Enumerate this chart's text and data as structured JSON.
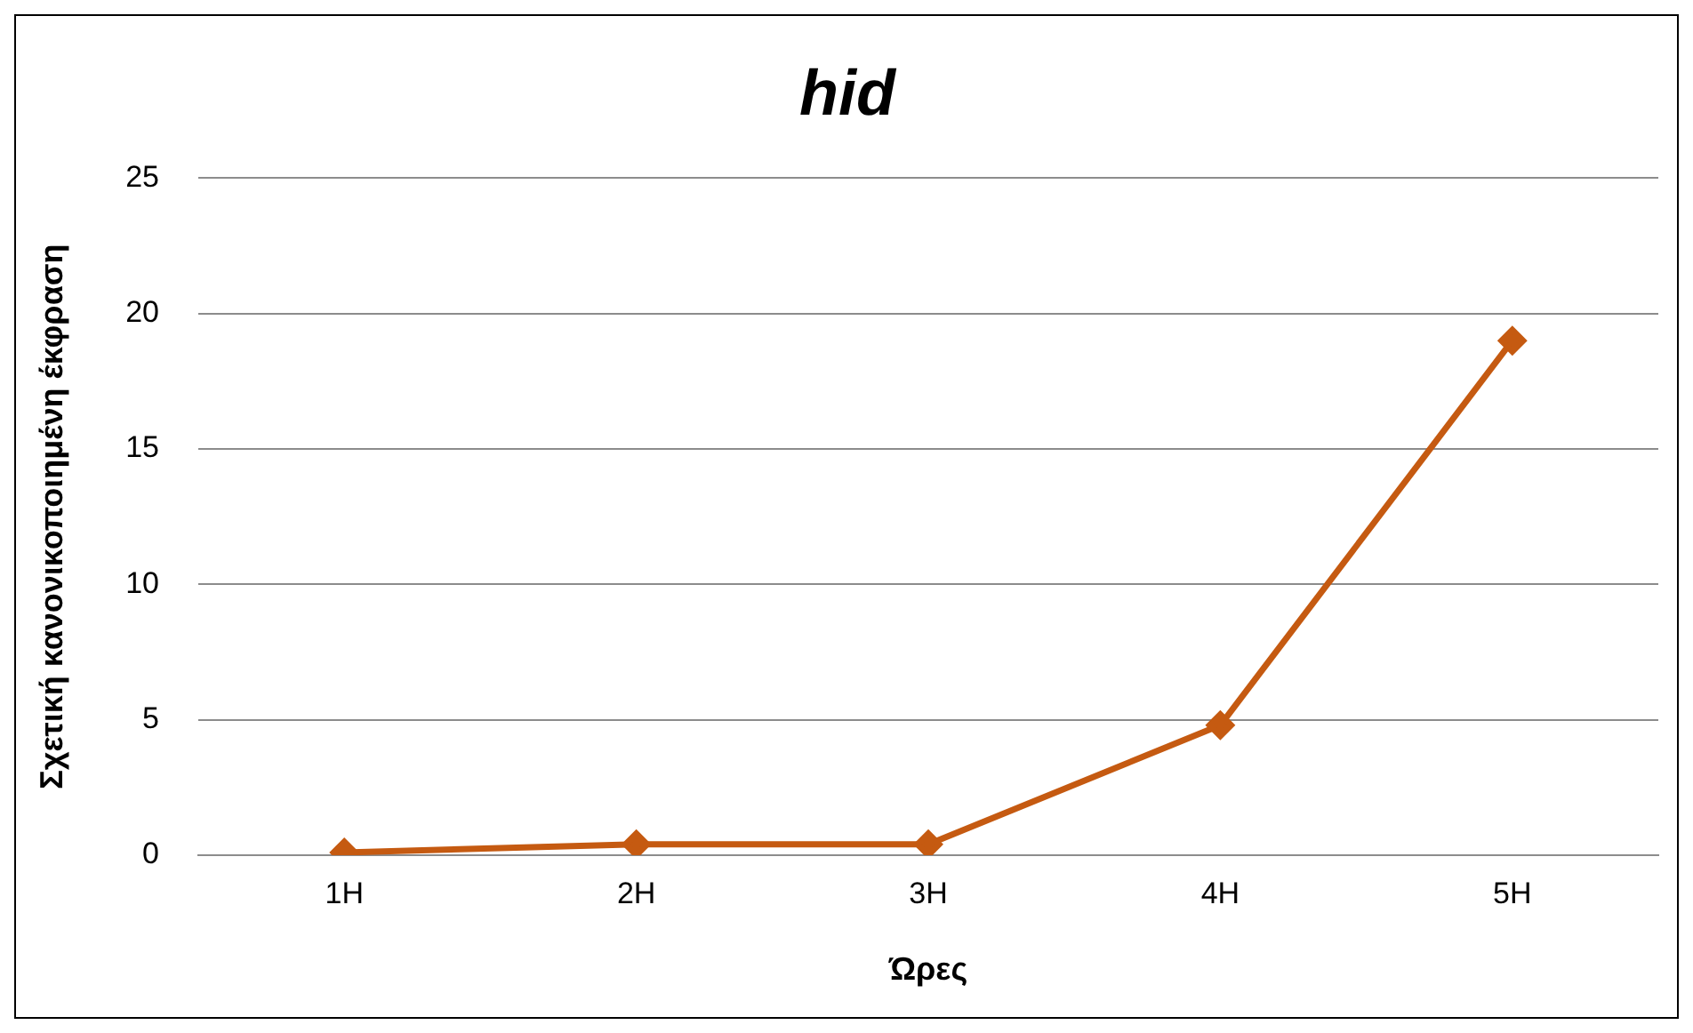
{
  "chart_data": {
    "type": "line",
    "title": "hid",
    "xlabel": "Ώρες",
    "ylabel": "Σχετική κανονικοποιημένη έκφραση",
    "categories": [
      "1H",
      "2H",
      "3H",
      "4H",
      "5H"
    ],
    "series": [
      {
        "color": "#c55a11",
        "values": [
          0.1,
          0.4,
          0.4,
          4.8,
          19
        ]
      }
    ],
    "ylim": [
      0,
      25
    ],
    "yticks": [
      0,
      5,
      10,
      15,
      20,
      25
    ],
    "grid": "y",
    "legend": false,
    "marker": "diamond",
    "line_style": "solid"
  }
}
